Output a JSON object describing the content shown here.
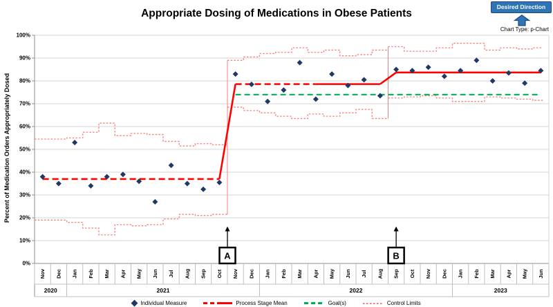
{
  "header": {
    "title": "Appropriate Dosing of Medications in Obese Patients",
    "desired_direction": {
      "label": "Desired Direction",
      "direction": "up"
    },
    "chart_type": "Chart Type: p-Chart"
  },
  "colors": {
    "individual_measure": "#1F3864",
    "stage_mean": "#FF0000",
    "goal": "#00B050",
    "control_limits": "#F97E7E",
    "gridline": "#D6D6D6",
    "axis": "#8C8C8C",
    "band_line": "#BFBFBF",
    "annotation": "#000000",
    "desired_button_bg": "#2E75B6",
    "desired_button_border": "#1C4587",
    "desired_button_text": "#FFFFFF"
  },
  "chart_data": {
    "type": "line",
    "chart_kind": "p-chart control chart",
    "title": "Appropriate Dosing of Medications in Obese Patients",
    "xlabel": "",
    "ylabel": "Percent of Medication Orders Appropriately Dosed",
    "ylim": [
      0,
      100
    ],
    "y_tick_step": 10,
    "y_tick_suffix": "%",
    "grid": true,
    "legend_position": "bottom",
    "months": [
      "Nov",
      "Dec",
      "Jan",
      "Feb",
      "Mar",
      "Apr",
      "May",
      "Jun",
      "Jul",
      "Aug",
      "Sep",
      "Oct",
      "Nov",
      "Dec",
      "Jan",
      "Feb",
      "Mar",
      "Apr",
      "May",
      "Jun",
      "Jul",
      "Aug",
      "Sep",
      "Oct",
      "Nov",
      "Dec",
      "Jan",
      "Feb",
      "Mar",
      "Apr",
      "May",
      "Jun"
    ],
    "year_groups": [
      {
        "label": "2020",
        "from": 0,
        "to": 1
      },
      {
        "label": "2021",
        "from": 2,
        "to": 13
      },
      {
        "label": "2022",
        "from": 14,
        "to": 25
      },
      {
        "label": "2023",
        "from": 26,
        "to": 31
      }
    ],
    "series": [
      {
        "name": "Individual Measure",
        "values": [
          38,
          35,
          53,
          34,
          38,
          39,
          36,
          27,
          43,
          35,
          32.5,
          35.5,
          83,
          78.5,
          71,
          76,
          88,
          72,
          83,
          78,
          80.5,
          73.5,
          85,
          84.5,
          86,
          82,
          84.5,
          89,
          80,
          83.5,
          79,
          84.5
        ]
      },
      {
        "name": "Upper Control Limit",
        "values": [
          54.5,
          54.5,
          55,
          57.5,
          61.5,
          56,
          57,
          56.5,
          53.5,
          51.5,
          52.5,
          52,
          89,
          90.5,
          92,
          92.5,
          94.5,
          92.5,
          93.5,
          91,
          91.5,
          93.5,
          95,
          93,
          93,
          94.5,
          96.5,
          96.5,
          93.5,
          94.5,
          94,
          94.5
        ]
      },
      {
        "name": "Lower Control Limit",
        "values": [
          19,
          19,
          18,
          15.5,
          12.5,
          17,
          16.5,
          17,
          19.5,
          21.5,
          21,
          21.5,
          68.5,
          67,
          66,
          64.5,
          63.5,
          65.5,
          64.5,
          66,
          67.5,
          63.5,
          72.5,
          73,
          73.5,
          72.5,
          71,
          71,
          73,
          72.5,
          72,
          71.5
        ]
      }
    ],
    "stages": [
      {
        "name": "Stage 1",
        "from": 0,
        "to": 11,
        "mean": 37,
        "line_style": "dashed"
      },
      {
        "name": "Stage 2",
        "from": 12,
        "to": 21,
        "mean": 78.6,
        "line_style": "dashed",
        "solid_from": 17
      },
      {
        "name": "Stage 3",
        "from": 22,
        "to": 31,
        "mean": 83.7,
        "line_style": "solid"
      }
    ],
    "goal": {
      "label": "Goal(s)",
      "value": 74,
      "from": 12,
      "to": 31
    },
    "phase_changes": [
      {
        "at_index": 12,
        "span_pct": [
          21.5,
          89
        ]
      },
      {
        "at_index": 22,
        "span_pct": [
          63.5,
          95
        ]
      }
    ],
    "annotations": [
      {
        "label": "A",
        "at_index": 12,
        "align": "boundary"
      },
      {
        "label": "B",
        "at_index": 22,
        "align": "center"
      }
    ]
  },
  "legend": {
    "items": [
      {
        "label": "Individual Measure",
        "glyph": "diamond"
      },
      {
        "label": "Process Stage Mean",
        "glyph": "dash-solid-line"
      },
      {
        "label": "Goal(s)",
        "glyph": "green-dashed-line"
      },
      {
        "label": "Control Limits",
        "glyph": "dotted-line"
      }
    ]
  }
}
